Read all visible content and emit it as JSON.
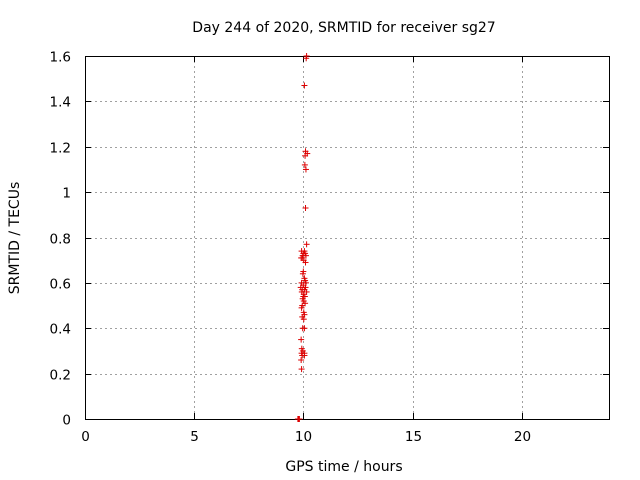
{
  "chart_data": {
    "type": "scatter",
    "title": "Day 244 of 2020, SRMTID for receiver sg27",
    "xlabel": "GPS time / hours",
    "ylabel": "SRMTID / TECUs",
    "xlim": [
      0,
      24
    ],
    "ylim": [
      0,
      1.6
    ],
    "xticks": [
      0,
      5,
      10,
      15,
      20
    ],
    "xtick_labels": [
      "0",
      "5",
      "10",
      "15",
      "20"
    ],
    "yticks": [
      0,
      0.2,
      0.4,
      0.6,
      0.8,
      1.0,
      1.2,
      1.4,
      1.6
    ],
    "ytick_labels": [
      "0",
      "0.2",
      "0.4",
      "0.6",
      "0.8",
      "1",
      "1.2",
      "1.4",
      "1.6"
    ],
    "grid": true,
    "marker": "+",
    "color": "#dd0000",
    "series": [
      {
        "x": [
          9.75,
          9.77,
          9.78,
          9.8,
          9.82,
          10.13,
          10.15,
          10.05,
          10.1,
          10.08,
          10.07,
          10.12,
          10.18,
          10.1,
          10.15,
          9.92,
          10.05,
          10.0,
          10.08,
          9.97,
          10.12,
          9.9,
          9.95,
          10.02,
          10.1,
          10.0,
          9.98,
          10.05,
          10.08,
          9.92,
          10.12,
          10.0,
          9.88,
          10.1,
          9.95,
          10.05,
          9.93,
          10.15,
          10.02,
          10.0,
          10.07,
          9.97,
          10.02,
          10.08,
          9.95,
          9.92,
          10.02,
          10.05,
          9.95,
          10.02,
          9.97,
          10.05,
          9.9,
          9.93,
          9.98,
          10.05,
          9.92,
          9.95,
          9.9,
          9.92,
          10.05
        ],
        "y": [
          0,
          0,
          0,
          0,
          0,
          1.59,
          1.6,
          1.47,
          1.18,
          1.16,
          1.12,
          1.1,
          1.17,
          0.93,
          0.77,
          0.74,
          0.74,
          0.73,
          0.73,
          0.72,
          0.72,
          0.71,
          0.71,
          0.7,
          0.69,
          0.65,
          0.64,
          0.62,
          0.61,
          0.6,
          0.6,
          0.59,
          0.58,
          0.58,
          0.57,
          0.57,
          0.56,
          0.56,
          0.55,
          0.54,
          0.54,
          0.53,
          0.52,
          0.51,
          0.5,
          0.49,
          0.47,
          0.46,
          0.45,
          0.44,
          0.4,
          0.4,
          0.35,
          0.31,
          0.3,
          0.29,
          0.29,
          0.28,
          0.26,
          0.22,
          0.28
        ]
      }
    ]
  }
}
